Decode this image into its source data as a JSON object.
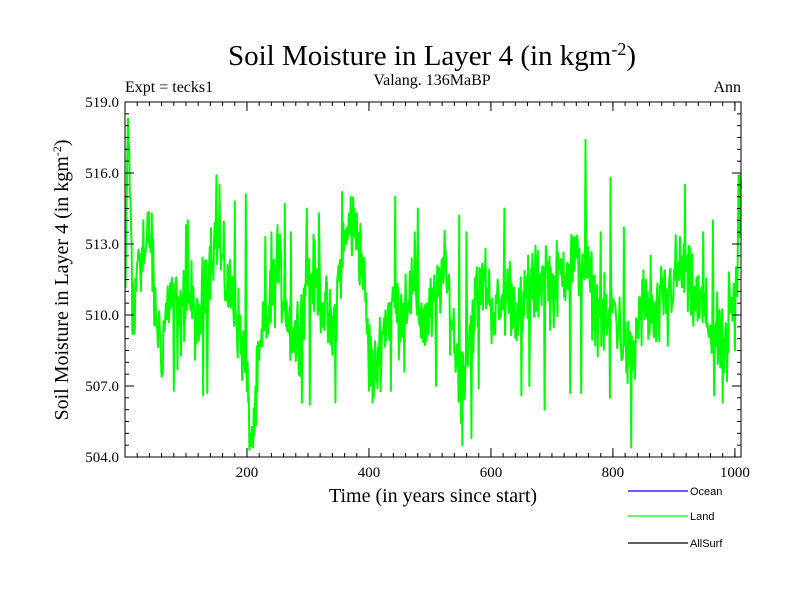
{
  "chart_data": {
    "type": "line",
    "title": "Soil Moisture in Layer 4 (in kgm",
    "title_sup": "-2",
    "title_close": ")",
    "subtitle": "Valang. 136MaBP",
    "left_label": "Expt = tecks1",
    "right_label": "Ann",
    "xlabel": "Time (in years since start)",
    "ylabel": "Soil Moisture in Layer 4 (in kgm",
    "ylabel_sup": "-2",
    "ylabel_close": ")",
    "xlim": [
      0,
      1010
    ],
    "ylim": [
      504.0,
      519.0
    ],
    "x_ticks": [
      200,
      400,
      600,
      800,
      1000
    ],
    "x_tick_labels": [
      "200",
      "400",
      "600",
      "800",
      "1000"
    ],
    "y_ticks": [
      504.0,
      507.0,
      510.0,
      513.0,
      516.0,
      519.0
    ],
    "y_tick_labels": [
      "504.0",
      "507.0",
      "510.0",
      "513.0",
      "516.0",
      "519.0"
    ],
    "legend": [
      {
        "name": "Ocean",
        "color": "#0000ff"
      },
      {
        "name": "Land",
        "color": "#00ff00"
      },
      {
        "name": "AllSurf",
        "color": "#000000"
      }
    ],
    "series": [
      {
        "name": "Land",
        "color": "#00ff00",
        "x_start": 1,
        "x_step": 1,
        "anchors": [
          [
            1,
            511.0
          ],
          [
            5,
            518.2
          ],
          [
            10,
            513.5
          ],
          [
            15,
            509.4
          ],
          [
            22,
            513.0
          ],
          [
            30,
            512.0
          ],
          [
            40,
            513.5
          ],
          [
            50,
            510.0
          ],
          [
            60,
            508.8
          ],
          [
            70,
            510.5
          ],
          [
            80,
            511.0
          ],
          [
            90,
            509.5
          ],
          [
            100,
            511.0
          ],
          [
            110,
            510.5
          ],
          [
            120,
            509.0
          ],
          [
            130,
            511.5
          ],
          [
            140,
            512.5
          ],
          [
            150,
            513.5
          ],
          [
            160,
            512.0
          ],
          [
            170,
            511.0
          ],
          [
            180,
            510.5
          ],
          [
            190,
            509.0
          ],
          [
            200,
            507.0
          ],
          [
            205,
            504.7
          ],
          [
            212,
            505.5
          ],
          [
            220,
            508.0
          ],
          [
            230,
            509.5
          ],
          [
            240,
            510.5
          ],
          [
            250,
            512.0
          ],
          [
            260,
            511.0
          ],
          [
            270,
            509.5
          ],
          [
            280,
            509.0
          ],
          [
            290,
            510.0
          ],
          [
            300,
            512.0
          ],
          [
            310,
            511.5
          ],
          [
            320,
            511.0
          ],
          [
            330,
            510.0
          ],
          [
            340,
            509.0
          ],
          [
            350,
            511.5
          ],
          [
            360,
            513.0
          ],
          [
            370,
            513.8
          ],
          [
            380,
            513.5
          ],
          [
            390,
            512.0
          ],
          [
            400,
            508.5
          ],
          [
            410,
            507.5
          ],
          [
            420,
            509.0
          ],
          [
            430,
            510.0
          ],
          [
            440,
            510.5
          ],
          [
            450,
            510.0
          ],
          [
            460,
            510.8
          ],
          [
            470,
            511.0
          ],
          [
            480,
            510.5
          ],
          [
            490,
            509.5
          ],
          [
            500,
            510.0
          ],
          [
            510,
            510.5
          ],
          [
            520,
            512.0
          ],
          [
            530,
            511.0
          ],
          [
            540,
            509.0
          ],
          [
            550,
            507.0
          ],
          [
            560,
            508.5
          ],
          [
            570,
            510.0
          ],
          [
            580,
            511.0
          ],
          [
            590,
            511.5
          ],
          [
            600,
            510.5
          ],
          [
            610,
            510.0
          ],
          [
            620,
            510.5
          ],
          [
            630,
            511.0
          ],
          [
            640,
            510.5
          ],
          [
            650,
            510.0
          ],
          [
            660,
            510.8
          ],
          [
            670,
            511.0
          ],
          [
            680,
            511.5
          ],
          [
            690,
            512.0
          ],
          [
            700,
            511.0
          ],
          [
            710,
            511.5
          ],
          [
            720,
            512.0
          ],
          [
            730,
            512.5
          ],
          [
            740,
            512.0
          ],
          [
            750,
            512.5
          ],
          [
            760,
            511.5
          ],
          [
            770,
            510.5
          ],
          [
            780,
            510.0
          ],
          [
            790,
            509.5
          ],
          [
            800,
            510.5
          ],
          [
            810,
            509.5
          ],
          [
            820,
            508.5
          ],
          [
            830,
            508.0
          ],
          [
            840,
            509.5
          ],
          [
            850,
            510.5
          ],
          [
            860,
            510.0
          ],
          [
            870,
            509.5
          ],
          [
            880,
            510.5
          ],
          [
            890,
            511.0
          ],
          [
            900,
            511.5
          ],
          [
            910,
            512.0
          ],
          [
            920,
            511.5
          ],
          [
            930,
            510.8
          ],
          [
            940,
            510.5
          ],
          [
            950,
            510.0
          ],
          [
            960,
            509.5
          ],
          [
            970,
            509.0
          ],
          [
            980,
            508.5
          ],
          [
            990,
            509.5
          ],
          [
            1000,
            510.5
          ],
          [
            1005,
            512.5
          ],
          [
            1010,
            514.5
          ]
        ],
        "spikes": [
          [
            5,
            518.3
          ],
          [
            7,
            517.0
          ],
          [
            12,
            509.2
          ],
          [
            15,
            509.2
          ],
          [
            30,
            514.0
          ],
          [
            44,
            514.3
          ],
          [
            62,
            507.5
          ],
          [
            80,
            506.8
          ],
          [
            86,
            507.7
          ],
          [
            100,
            513.8
          ],
          [
            103,
            514.0
          ],
          [
            128,
            506.6
          ],
          [
            135,
            506.7
          ],
          [
            150,
            515.9
          ],
          [
            155,
            515.5
          ],
          [
            180,
            514.8
          ],
          [
            198,
            515.1
          ],
          [
            205,
            504.5
          ],
          [
            210,
            504.4
          ],
          [
            213,
            506.0
          ],
          [
            230,
            513.3
          ],
          [
            240,
            513.5
          ],
          [
            250,
            513.8
          ],
          [
            262,
            514.7
          ],
          [
            272,
            513.5
          ],
          [
            290,
            506.3
          ],
          [
            298,
            514.5
          ],
          [
            303,
            506.2
          ],
          [
            318,
            514.3
          ],
          [
            345,
            506.3
          ],
          [
            356,
            515.2
          ],
          [
            370,
            515.0
          ],
          [
            380,
            514.3
          ],
          [
            400,
            506.8
          ],
          [
            406,
            506.3
          ],
          [
            436,
            506.8
          ],
          [
            443,
            515.0
          ],
          [
            458,
            507.6
          ],
          [
            475,
            513.5
          ],
          [
            480,
            514.5
          ],
          [
            510,
            507.0
          ],
          [
            526,
            512.7
          ],
          [
            548,
            514.2
          ],
          [
            553,
            504.5
          ],
          [
            560,
            513.5
          ],
          [
            568,
            504.8
          ],
          [
            580,
            506.9
          ],
          [
            588,
            512.0
          ],
          [
            622,
            514.5
          ],
          [
            650,
            506.6
          ],
          [
            661,
            512.5
          ],
          [
            663,
            507.0
          ],
          [
            668,
            512.6
          ],
          [
            688,
            506.0
          ],
          [
            730,
            506.7
          ],
          [
            748,
            506.7
          ],
          [
            755,
            517.4
          ],
          [
            780,
            513.5
          ],
          [
            796,
            515.8
          ],
          [
            795,
            506.5
          ],
          [
            818,
            513.7
          ],
          [
            830,
            504.4
          ],
          [
            836,
            507.3
          ],
          [
            862,
            512.5
          ],
          [
            890,
            508.7
          ],
          [
            918,
            515.5
          ],
          [
            934,
            511.2
          ],
          [
            948,
            513.5
          ],
          [
            964,
            514.0
          ],
          [
            966,
            506.6
          ],
          [
            980,
            506.3
          ],
          [
            987,
            507.2
          ],
          [
            990,
            511.8
          ],
          [
            1000,
            508.5
          ],
          [
            1006,
            515.9
          ],
          [
            1009,
            515.9
          ]
        ],
        "noise_amplitude": 0.8
      }
    ]
  }
}
